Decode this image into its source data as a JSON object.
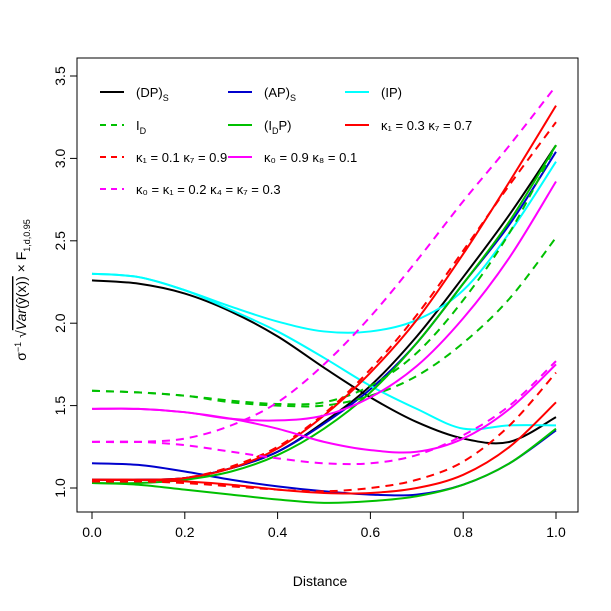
{
  "chart_data": {
    "type": "line",
    "xlabel": "Distance",
    "ylabel": "σ⁻¹ √Var(ŷ(x)) × F1,d,0.95",
    "ylabel_parts": {
      "prefix": "σ",
      "prefix_sup": "−1",
      "var": "Var",
      "yhat": "(ŷ(x))",
      "times": " × F",
      "sub": "1,d,0.95"
    },
    "xlim": [
      0,
      1
    ],
    "ylim": [
      0.9,
      3.5
    ],
    "x_ticks": [
      "0.0",
      "0.2",
      "0.4",
      "0.6",
      "0.8",
      "1.0"
    ],
    "y_ticks": [
      "1.0",
      "1.5",
      "2.0",
      "2.5",
      "3.0",
      "3.5"
    ],
    "grid": false,
    "legend_position": "top-left",
    "colors": {
      "black": "#000000",
      "blue": "#0000CD",
      "cyan": "#00FFFF",
      "green": "#00C000",
      "red": "#FF0000",
      "magenta": "#FF00FF"
    },
    "legend": [
      {
        "label": "(DP)",
        "sub": "S",
        "color": "black",
        "dash": false
      },
      {
        "label": "(AP)",
        "sub": "S",
        "color": "blue",
        "dash": false
      },
      {
        "label": "(IP)",
        "sub": "",
        "color": "cyan",
        "dash": false
      },
      {
        "label": "I",
        "sub": "D",
        "color": "green",
        "dash": true
      },
      {
        "label": "(I",
        "sub": "D",
        "after": "P)",
        "color": "green",
        "dash": false
      },
      {
        "label": "κ₁ = 0.3 κ₇ = 0.7",
        "sub": "",
        "color": "red",
        "dash": false
      },
      {
        "label": "κ₁ = 0.1 κ₇ = 0.9",
        "sub": "",
        "color": "red",
        "dash": true
      },
      {
        "label": "κ₀ = 0.9 κ₈ = 0.1",
        "sub": "",
        "color": "magenta",
        "dash": false
      },
      {
        "label": "κ₀ = κ₁ = 0.2 κ₄ = κ₇ = 0.3",
        "sub": "",
        "color": "magenta",
        "dash": true
      }
    ],
    "series": [
      {
        "color": "black",
        "dash": false,
        "x": [
          0,
          0.1,
          0.2,
          0.3,
          0.4,
          0.5,
          0.6,
          0.7,
          0.8,
          0.9,
          1.0
        ],
        "y": [
          2.26,
          2.24,
          2.18,
          2.07,
          1.92,
          1.73,
          1.55,
          1.4,
          1.3,
          1.28,
          1.43
        ]
      },
      {
        "color": "black",
        "dash": false,
        "x": [
          0,
          0.1,
          0.2,
          0.3,
          0.4,
          0.5,
          0.6,
          0.7,
          0.8,
          0.9,
          1.0
        ],
        "y": [
          1.05,
          1.05,
          1.06,
          1.12,
          1.22,
          1.4,
          1.62,
          1.92,
          2.28,
          2.66,
          3.08
        ]
      },
      {
        "color": "blue",
        "dash": false,
        "x": [
          0,
          0.1,
          0.2,
          0.3,
          0.4,
          0.5,
          0.6,
          0.7,
          0.8,
          0.9,
          1.0
        ],
        "y": [
          1.15,
          1.14,
          1.1,
          1.05,
          1.01,
          0.98,
          0.96,
          0.96,
          1.02,
          1.15,
          1.35
        ]
      },
      {
        "color": "blue",
        "dash": false,
        "x": [
          0,
          0.1,
          0.2,
          0.3,
          0.4,
          0.5,
          0.6,
          0.7,
          0.8,
          0.9,
          1.0
        ],
        "y": [
          1.05,
          1.05,
          1.06,
          1.12,
          1.22,
          1.39,
          1.6,
          1.88,
          2.24,
          2.6,
          3.04
        ]
      },
      {
        "color": "cyan",
        "dash": false,
        "x": [
          0,
          0.1,
          0.2,
          0.3,
          0.4,
          0.5,
          0.6,
          0.7,
          0.8,
          0.9,
          1.0
        ],
        "y": [
          2.3,
          2.28,
          2.2,
          2.1,
          2.01,
          1.95,
          1.95,
          2.02,
          2.2,
          2.55,
          2.98
        ]
      },
      {
        "color": "cyan",
        "dash": false,
        "x": [
          0,
          0.1,
          0.2,
          0.3,
          0.4,
          0.5,
          0.6,
          0.7,
          0.8,
          0.9,
          1.0
        ],
        "y": [
          2.3,
          2.28,
          2.2,
          2.08,
          1.95,
          1.79,
          1.62,
          1.48,
          1.36,
          1.38,
          1.38
        ]
      },
      {
        "color": "green",
        "dash": true,
        "x": [
          0,
          0.1,
          0.2,
          0.3,
          0.4,
          0.5,
          0.6,
          0.7,
          0.8,
          0.9,
          1.0
        ],
        "y": [
          1.59,
          1.58,
          1.56,
          1.52,
          1.5,
          1.5,
          1.56,
          1.68,
          1.88,
          2.15,
          2.52
        ]
      },
      {
        "color": "green",
        "dash": true,
        "x": [
          0,
          0.1,
          0.2,
          0.3,
          0.4,
          0.5,
          0.6,
          0.7,
          0.8,
          0.9,
          1.0
        ],
        "y": [
          1.59,
          1.58,
          1.56,
          1.53,
          1.51,
          1.52,
          1.62,
          1.82,
          2.14,
          2.55,
          3.08
        ]
      },
      {
        "color": "green",
        "dash": false,
        "x": [
          0,
          0.1,
          0.2,
          0.3,
          0.4,
          0.5,
          0.6,
          0.7,
          0.8,
          0.9,
          1.0
        ],
        "y": [
          1.03,
          1.02,
          0.99,
          0.96,
          0.93,
          0.91,
          0.92,
          0.95,
          1.02,
          1.15,
          1.36
        ]
      },
      {
        "color": "green",
        "dash": false,
        "x": [
          0,
          0.1,
          0.2,
          0.3,
          0.4,
          0.5,
          0.6,
          0.7,
          0.8,
          0.9,
          1.0
        ],
        "y": [
          1.03,
          1.03,
          1.05,
          1.1,
          1.2,
          1.36,
          1.58,
          1.88,
          2.24,
          2.62,
          3.08
        ]
      },
      {
        "color": "red",
        "dash": false,
        "x": [
          0,
          0.1,
          0.2,
          0.3,
          0.4,
          0.5,
          0.6,
          0.7,
          0.8,
          0.9,
          1.0
        ],
        "y": [
          1.05,
          1.05,
          1.04,
          1.02,
          0.99,
          0.97,
          0.97,
          1.0,
          1.08,
          1.25,
          1.52
        ]
      },
      {
        "color": "red",
        "dash": false,
        "x": [
          0,
          0.1,
          0.2,
          0.3,
          0.4,
          0.5,
          0.6,
          0.7,
          0.8,
          0.9,
          1.0
        ],
        "y": [
          1.05,
          1.05,
          1.06,
          1.12,
          1.24,
          1.44,
          1.7,
          2.02,
          2.42,
          2.86,
          3.32
        ]
      },
      {
        "color": "red",
        "dash": true,
        "x": [
          0,
          0.1,
          0.2,
          0.3,
          0.4,
          0.5,
          0.6,
          0.7,
          0.8,
          0.9,
          1.0
        ],
        "y": [
          1.04,
          1.04,
          1.03,
          1.01,
          0.99,
          0.98,
          1.0,
          1.05,
          1.16,
          1.38,
          1.7
        ]
      },
      {
        "color": "red",
        "dash": true,
        "x": [
          0,
          0.1,
          0.2,
          0.3,
          0.4,
          0.5,
          0.6,
          0.7,
          0.8,
          0.9,
          1.0
        ],
        "y": [
          1.04,
          1.04,
          1.06,
          1.13,
          1.25,
          1.45,
          1.72,
          2.05,
          2.44,
          2.84,
          3.22
        ]
      },
      {
        "color": "magenta",
        "dash": false,
        "x": [
          0,
          0.1,
          0.2,
          0.3,
          0.4,
          0.5,
          0.6,
          0.7,
          0.8,
          0.9,
          1.0
        ],
        "y": [
          1.48,
          1.48,
          1.46,
          1.42,
          1.36,
          1.28,
          1.23,
          1.22,
          1.3,
          1.48,
          1.75
        ]
      },
      {
        "color": "magenta",
        "dash": false,
        "x": [
          0,
          0.1,
          0.2,
          0.3,
          0.4,
          0.5,
          0.6,
          0.7,
          0.8,
          0.9,
          1.0
        ],
        "y": [
          1.48,
          1.48,
          1.46,
          1.42,
          1.41,
          1.44,
          1.55,
          1.74,
          2.03,
          2.4,
          2.86
        ]
      },
      {
        "color": "magenta",
        "dash": true,
        "x": [
          0,
          0.1,
          0.2,
          0.3,
          0.4,
          0.5,
          0.6,
          0.7,
          0.8,
          0.9,
          1.0
        ],
        "y": [
          1.28,
          1.28,
          1.26,
          1.22,
          1.18,
          1.15,
          1.15,
          1.2,
          1.32,
          1.5,
          1.77
        ]
      },
      {
        "color": "magenta",
        "dash": true,
        "x": [
          0,
          0.1,
          0.2,
          0.3,
          0.4,
          0.5,
          0.6,
          0.7,
          0.8,
          0.9,
          1.0
        ],
        "y": [
          1.28,
          1.28,
          1.3,
          1.38,
          1.52,
          1.75,
          2.04,
          2.38,
          2.74,
          3.08,
          3.44
        ]
      }
    ]
  }
}
